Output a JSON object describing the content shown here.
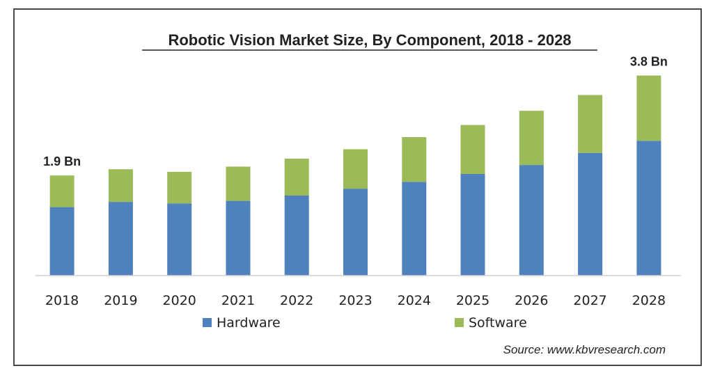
{
  "chart_data": {
    "type": "bar",
    "stacked": true,
    "title": "Robotic Vision Market Size, By Component, 2018 - 2028",
    "categories": [
      "2018",
      "2019",
      "2020",
      "2021",
      "2022",
      "2023",
      "2024",
      "2025",
      "2026",
      "2027",
      "2028"
    ],
    "series": [
      {
        "name": "Hardware",
        "color": "#4f81bd",
        "values": [
          1.3,
          1.4,
          1.37,
          1.42,
          1.52,
          1.65,
          1.78,
          1.93,
          2.1,
          2.33,
          2.56
        ]
      },
      {
        "name": "Software",
        "color": "#9bbb59",
        "values": [
          0.6,
          0.62,
          0.6,
          0.65,
          0.7,
          0.75,
          0.85,
          0.93,
          1.03,
          1.1,
          1.24
        ]
      }
    ],
    "annotations": [
      {
        "category": "2018",
        "text": "1.9 Bn"
      },
      {
        "category": "2028",
        "text": "3.8 Bn"
      }
    ],
    "ylim": [
      0,
      4
    ],
    "yaxis_visible": false,
    "grid": false,
    "legend_position": "bottom",
    "source": "Source:  www.kbvresearch.com"
  }
}
